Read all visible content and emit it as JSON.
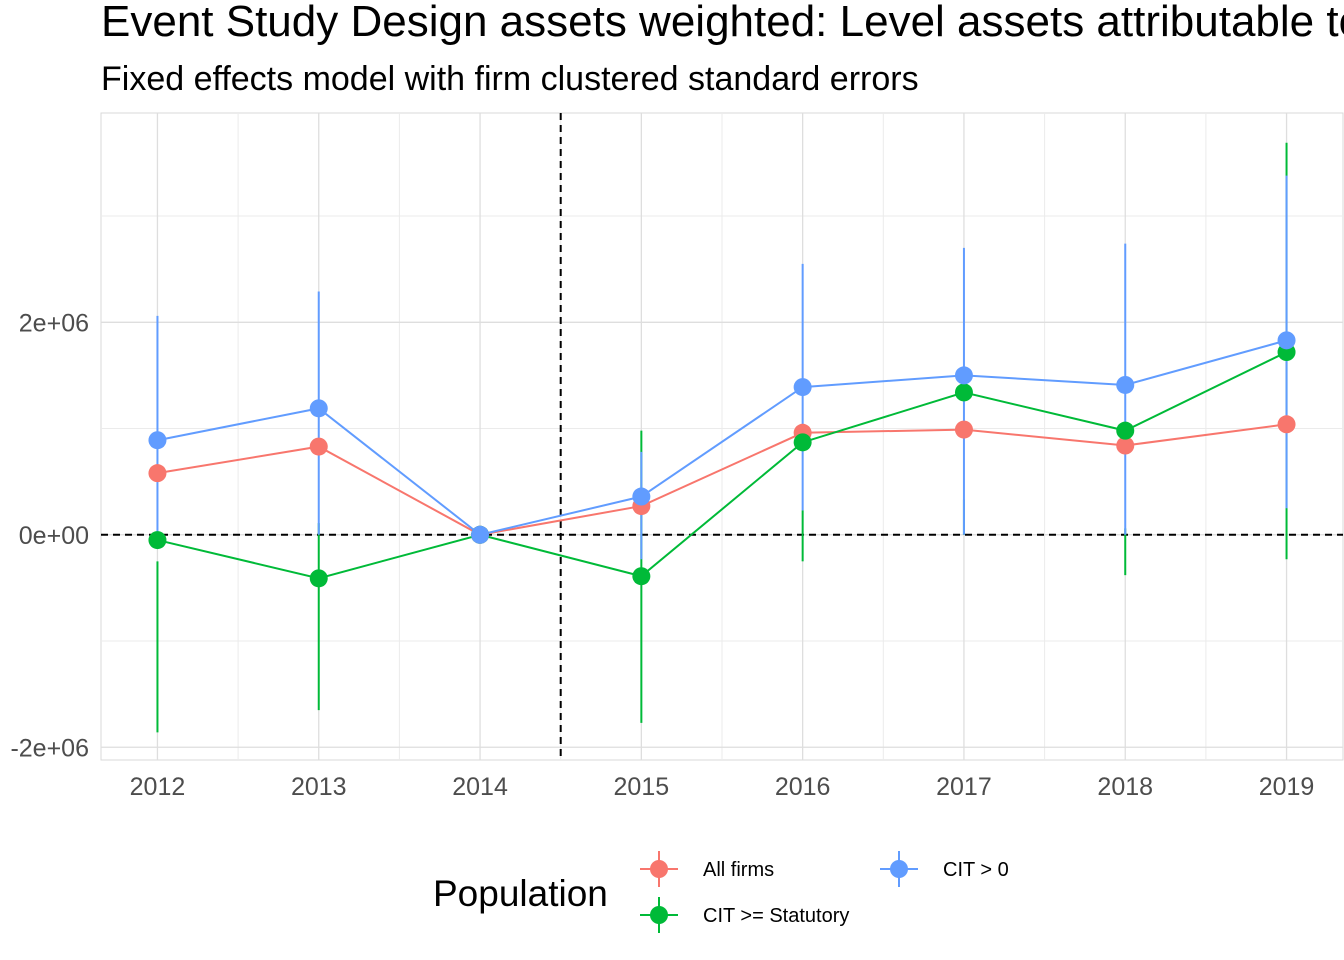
{
  "chart_data": {
    "type": "line",
    "title": "Event Study Design assets weighted: Level assets attributable to MNEs",
    "subtitle": "Fixed effects model with firm clustered standard errors",
    "xlabel": "",
    "ylabel": "",
    "x": [
      2012,
      2013,
      2014,
      2015,
      2016,
      2017,
      2018,
      2019
    ],
    "x_tick_labels": [
      "2012",
      "2013",
      "2014",
      "2015",
      "2016",
      "2017",
      "2018",
      "2019"
    ],
    "xlim": [
      2011.65,
      2019.35
    ],
    "ylim": [
      -2120000,
      3970000
    ],
    "y_ticks": [
      -2000000,
      0,
      2000000
    ],
    "y_tick_labels": [
      "-2e+06",
      "0e+00",
      "2e+06"
    ],
    "grid": true,
    "reference_lines": {
      "vertical_x": 2014.5,
      "horizontal_y": 0
    },
    "legend": {
      "title": "Population",
      "placement": "bottom",
      "entries": [
        "All firms",
        "CIT >= Statutory",
        "CIT > 0"
      ]
    },
    "series": [
      {
        "name": "All firms",
        "color": "#F8766D",
        "values": [
          580000,
          830000,
          0,
          270000,
          960000,
          990000,
          840000,
          1040000
        ],
        "lower": [
          null,
          null,
          null,
          null,
          null,
          null,
          null,
          null
        ],
        "upper": [
          null,
          null,
          null,
          null,
          null,
          null,
          null,
          null
        ]
      },
      {
        "name": "CIT >= Statutory",
        "color": "#00BA38",
        "values": [
          -50000,
          -410000,
          0,
          -390000,
          870000,
          1340000,
          980000,
          1720000
        ],
        "lower": [
          -1860000,
          -1650000,
          0,
          -1770000,
          -250000,
          0,
          -380000,
          -230000
        ],
        "upper": [
          -250000,
          110000,
          0,
          980000,
          230000,
          330000,
          60000,
          3690000
        ]
      },
      {
        "name": "CIT > 0",
        "color": "#619CFF",
        "values": [
          890000,
          1190000,
          0,
          360000,
          1390000,
          1500000,
          1410000,
          1830000
        ],
        "lower": [
          -20000,
          0,
          0,
          -230000,
          230000,
          0,
          0,
          250000
        ],
        "upper": [
          2060000,
          2290000,
          0,
          780000,
          2550000,
          2700000,
          2740000,
          3380000
        ]
      }
    ]
  }
}
